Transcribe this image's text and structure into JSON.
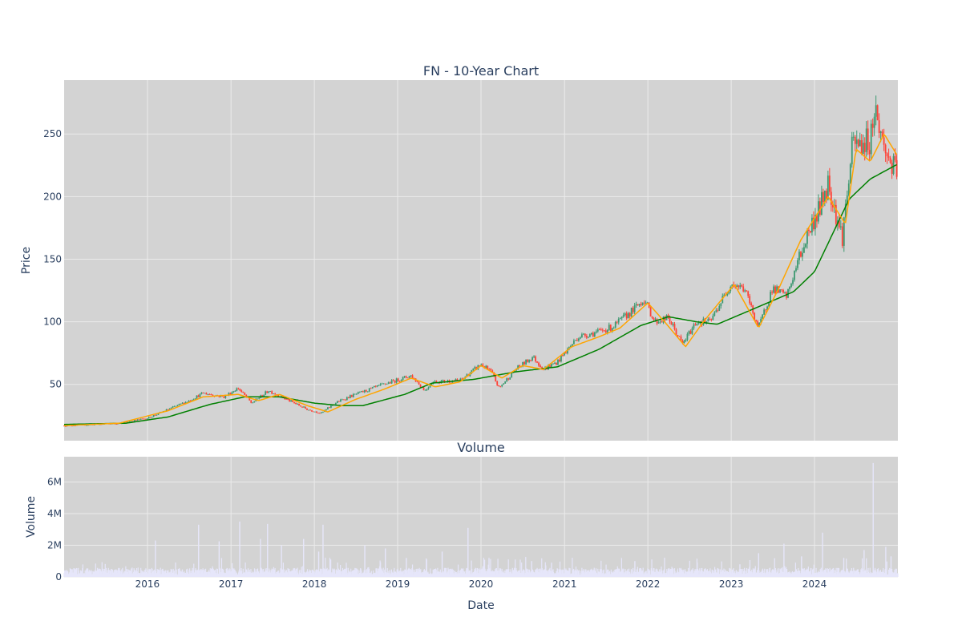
{
  "chart_data": [
    {
      "type": "candlestick",
      "title": "FN - 10-Year Chart",
      "xlabel": "",
      "ylabel": "Price",
      "x_range": [
        "2015-01-01",
        "2024-12-31"
      ],
      "ylim": [
        5,
        293
      ],
      "y_ticks": [
        50,
        100,
        150,
        200,
        250
      ],
      "grid": true,
      "legend": "none",
      "colors": {
        "plot_bg": "#d3d3d3",
        "grid": "#ebebeb",
        "increasing": "#3d9970",
        "decreasing": "#ff4136",
        "ma_short": "#ffa500",
        "ma_long": "#008000",
        "text": "#2a3f5f"
      },
      "price_path": {
        "x": [
          "2015-01-01",
          "2015-06-01",
          "2015-09-01",
          "2016-01-01",
          "2016-04-01",
          "2016-07-01",
          "2016-09-01",
          "2016-12-01",
          "2017-02-01",
          "2017-04-01",
          "2017-06-15",
          "2017-09-01",
          "2017-12-01",
          "2018-02-01",
          "2018-04-01",
          "2018-06-01",
          "2018-09-01",
          "2018-11-01",
          "2019-03-01",
          "2019-05-01",
          "2019-06-01",
          "2019-10-01",
          "2020-01-01",
          "2020-02-15",
          "2020-03-20",
          "2020-06-01",
          "2020-08-15",
          "2020-10-01",
          "2020-12-01",
          "2021-03-01",
          "2021-06-01",
          "2021-08-01",
          "2021-11-01",
          "2021-12-15",
          "2022-02-01",
          "2022-04-01",
          "2022-06-01",
          "2022-08-01",
          "2022-10-01",
          "2023-01-01",
          "2023-03-01",
          "2023-05-01",
          "2023-07-01",
          "2023-09-01",
          "2023-10-15",
          "2023-12-01",
          "2024-02-01",
          "2024-03-01",
          "2024-05-01",
          "2024-06-15",
          "2024-09-01",
          "2024-09-20",
          "2024-11-01",
          "2024-12-31"
        ],
        "y": [
          17,
          18,
          19,
          23,
          30,
          37,
          43,
          40,
          47,
          35,
          45,
          38,
          30,
          27,
          35,
          40,
          46,
          50,
          57,
          45,
          52,
          53,
          66,
          60,
          47,
          62,
          72,
          62,
          68,
          88,
          92,
          96,
          110,
          118,
          100,
          103,
          82,
          100,
          100,
          131,
          126,
          95,
          127,
          120,
          145,
          170,
          195,
          212,
          167,
          240,
          245,
          272,
          238,
          215
        ]
      },
      "ma_short_path": {
        "x": [
          "2015-01-01",
          "2015-09-01",
          "2016-04-01",
          "2016-09-01",
          "2017-02-01",
          "2017-05-01",
          "2017-08-01",
          "2017-12-01",
          "2018-03-01",
          "2018-07-01",
          "2018-11-01",
          "2019-03-01",
          "2019-06-15",
          "2019-10-01",
          "2020-01-01",
          "2020-04-01",
          "2020-07-01",
          "2020-10-01",
          "2021-02-01",
          "2021-06-01",
          "2021-09-01",
          "2022-01-01",
          "2022-03-15",
          "2022-06-15",
          "2022-09-01",
          "2023-01-15",
          "2023-05-01",
          "2023-08-01",
          "2023-11-01",
          "2024-03-01",
          "2024-05-15",
          "2024-07-01",
          "2024-09-01",
          "2024-11-01",
          "2024-12-31"
        ],
        "y": [
          17,
          19,
          29,
          40,
          42,
          37,
          42,
          33,
          28,
          38,
          46,
          55,
          48,
          52,
          65,
          55,
          65,
          62,
          80,
          88,
          95,
          115,
          100,
          80,
          100,
          130,
          95,
          128,
          165,
          200,
          178,
          238,
          228,
          250,
          232
        ]
      },
      "ma_long_path": {
        "x": [
          "2015-01-01",
          "2015-10-01",
          "2016-04-01",
          "2016-10-01",
          "2017-03-01",
          "2017-08-01",
          "2018-01-01",
          "2018-05-01",
          "2018-08-01",
          "2019-02-01",
          "2019-06-01",
          "2019-12-01",
          "2020-06-01",
          "2020-12-01",
          "2021-06-01",
          "2021-12-01",
          "2022-04-01",
          "2022-08-01",
          "2022-11-01",
          "2023-05-01",
          "2023-10-01",
          "2024-01-01",
          "2024-06-01",
          "2024-09-01",
          "2024-12-31"
        ],
        "y": [
          18,
          19,
          24,
          34,
          40,
          40,
          35,
          33,
          33,
          42,
          51,
          54,
          60,
          64,
          78,
          97,
          104,
          100,
          98,
          112,
          124,
          140,
          198,
          214,
          226
        ]
      }
    },
    {
      "type": "bar",
      "title": "Volume",
      "xlabel": "Date",
      "ylabel": "Volume",
      "x_range": [
        "2015-01-01",
        "2024-12-31"
      ],
      "ylim": [
        0,
        7600000
      ],
      "y_ticks": [
        0,
        2000000,
        4000000,
        6000000
      ],
      "y_tick_labels": [
        "0",
        "2M",
        "4M",
        "6M"
      ],
      "x_ticks": [
        "2016",
        "2017",
        "2018",
        "2019",
        "2020",
        "2021",
        "2022",
        "2023",
        "2024"
      ],
      "grid": true,
      "legend": "none",
      "colors": {
        "bar": "#e6e6fa"
      },
      "baseline_volume": 350000,
      "spikes": {
        "x": [
          "2016-02-05",
          "2016-08-12",
          "2016-11-10",
          "2017-02-08",
          "2017-05-10",
          "2017-06-10",
          "2017-08-10",
          "2017-11-15",
          "2018-01-20",
          "2018-02-08",
          "2018-08-10",
          "2018-11-08",
          "2019-02-08",
          "2019-05-08",
          "2019-07-15",
          "2019-11-05",
          "2020-02-05",
          "2020-08-10",
          "2020-11-05",
          "2021-11-05",
          "2022-08-05",
          "2023-02-08",
          "2023-05-01",
          "2023-08-20",
          "2023-11-05",
          "2024-02-05",
          "2024-05-08",
          "2024-08-05",
          "2024-09-14",
          "2024-11-08",
          "2024-12-01"
        ],
        "y": [
          2300000,
          3300000,
          2250000,
          3500000,
          2400000,
          3350000,
          2000000,
          2400000,
          1600000,
          3300000,
          2000000,
          1800000,
          1200000,
          1100000,
          1600000,
          3100000,
          1200000,
          1000000,
          900000,
          1000000,
          900000,
          800000,
          1500000,
          2100000,
          1300000,
          2800000,
          1200000,
          1700000,
          7200000,
          1900000,
          1300000
        ]
      }
    }
  ]
}
